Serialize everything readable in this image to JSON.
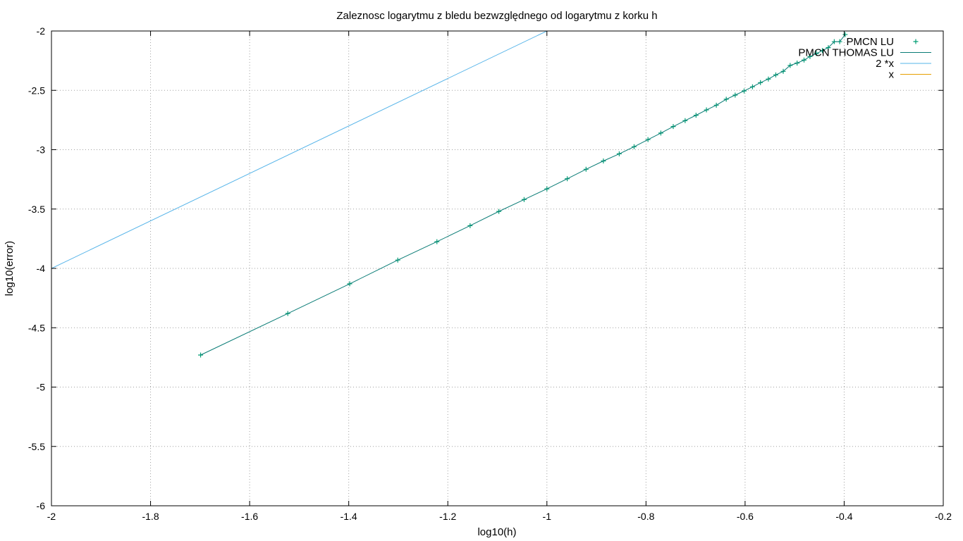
{
  "chart_data": {
    "type": "line",
    "title": "Zaleznosc logarytmu z bledu bezwzględnego od logarytmu z korku h",
    "xlabel": "log10(h)",
    "ylabel": "log10(error)",
    "xlim": [
      -2,
      -0.2
    ],
    "ylim": [
      -6,
      -2
    ],
    "xticks": [
      -2,
      -1.8,
      -1.6,
      -1.4,
      -1.2,
      -1,
      -0.8,
      -0.6,
      -0.4,
      -0.2
    ],
    "xtick_labels": [
      "-2",
      "-1.8",
      "-1.6",
      "-1.4",
      "-1.2",
      "-1",
      "-0.8",
      "-0.6",
      "-0.4",
      "-0.2"
    ],
    "yticks": [
      -2,
      -2.5,
      -3,
      -3.5,
      -4,
      -4.5,
      -5,
      -5.5,
      -6
    ],
    "ytick_labels": [
      "-2",
      "-2.5",
      "-3",
      "-3.5",
      "-4",
      "-4.5",
      "-5",
      "-5.5",
      "-6"
    ],
    "grid": true,
    "legend_position": "top-right",
    "series": [
      {
        "name": "PMCN LU",
        "style": "points",
        "color": "#009e73",
        "x": [
          -1.699,
          -1.523,
          -1.398,
          -1.301,
          -1.222,
          -1.155,
          -1.097,
          -1.046,
          -1.0,
          -0.959,
          -0.921,
          -0.886,
          -0.854,
          -0.824,
          -0.796,
          -0.77,
          -0.745,
          -0.721,
          -0.699,
          -0.678,
          -0.658,
          -0.638,
          -0.62,
          -0.602,
          -0.585,
          -0.569,
          -0.553,
          -0.538,
          -0.523,
          -0.509,
          -0.495,
          -0.481,
          -0.469,
          -0.456,
          -0.444,
          -0.432,
          -0.42,
          -0.409,
          -0.398
        ],
        "y": [
          -4.73,
          -4.38,
          -4.13,
          -3.93,
          -3.775,
          -3.64,
          -3.52,
          -3.42,
          -3.33,
          -3.245,
          -3.165,
          -3.095,
          -3.035,
          -2.975,
          -2.915,
          -2.86,
          -2.805,
          -2.755,
          -2.71,
          -2.665,
          -2.625,
          -2.575,
          -2.54,
          -2.505,
          -2.47,
          -2.435,
          -2.405,
          -2.37,
          -2.34,
          -2.29,
          -2.27,
          -2.245,
          -2.215,
          -2.19,
          -2.165,
          -2.14,
          -2.09,
          -2.09,
          -2.03
        ]
      },
      {
        "name": "PMCN THOMAS LU",
        "style": "line",
        "color": "#0a7c76",
        "x": [
          -1.699,
          -1.523,
          -1.398,
          -1.301,
          -1.222,
          -1.155,
          -1.097,
          -1.046,
          -1.0,
          -0.959,
          -0.921,
          -0.886,
          -0.854,
          -0.824,
          -0.796,
          -0.77,
          -0.745,
          -0.721,
          -0.699,
          -0.678,
          -0.658,
          -0.638,
          -0.62,
          -0.602,
          -0.585,
          -0.569,
          -0.553,
          -0.538,
          -0.523,
          -0.509,
          -0.495,
          -0.481,
          -0.469,
          -0.456,
          -0.444,
          -0.432,
          -0.42,
          -0.409,
          -0.398
        ],
        "y": [
          -4.73,
          -4.38,
          -4.13,
          -3.93,
          -3.775,
          -3.64,
          -3.52,
          -3.42,
          -3.33,
          -3.245,
          -3.165,
          -3.095,
          -3.035,
          -2.975,
          -2.915,
          -2.86,
          -2.805,
          -2.755,
          -2.71,
          -2.665,
          -2.625,
          -2.575,
          -2.54,
          -2.505,
          -2.47,
          -2.435,
          -2.405,
          -2.37,
          -2.34,
          -2.29,
          -2.27,
          -2.245,
          -2.215,
          -2.19,
          -2.165,
          -2.14,
          -2.09,
          -2.09,
          -2.03
        ]
      },
      {
        "name": "2 *x",
        "style": "line",
        "color": "#56b4e9",
        "x": [
          -2,
          -1
        ],
        "y": [
          -4,
          -2
        ]
      },
      {
        "name": "x",
        "style": "line",
        "color": "#e69f00",
        "x": [],
        "y": []
      }
    ]
  }
}
